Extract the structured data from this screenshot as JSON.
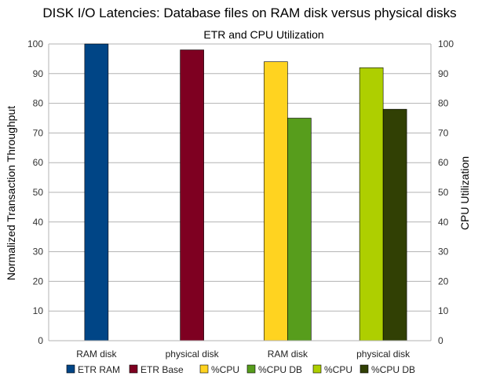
{
  "chart_data": {
    "type": "bar",
    "title": "DISK I/O Latencies: Database files on RAM disk versus physical disks",
    "subtitle": "ETR and CPU Utilization",
    "ylabel": "Normalized Transaction Throughput",
    "y2label": "CPU Utilization",
    "ylim": [
      0,
      100
    ],
    "y2lim": [
      0,
      100
    ],
    "yticks": [
      0,
      10,
      20,
      30,
      40,
      50,
      60,
      70,
      80,
      90,
      100
    ],
    "grid": true,
    "legend_position": "bottom",
    "categories": [
      "RAM disk",
      "physical disk",
      "RAM disk",
      "physical disk"
    ],
    "series": [
      {
        "name": "ETR RAM",
        "color": "#004586",
        "axis": "left",
        "values": [
          100,
          null,
          null,
          null
        ]
      },
      {
        "name": "ETR Base",
        "color": "#7e0021",
        "axis": "left",
        "values": [
          null,
          98,
          null,
          null
        ]
      },
      {
        "name": "%CPU",
        "color": "#ffd320",
        "axis": "right",
        "values": [
          null,
          null,
          94,
          null
        ]
      },
      {
        "name": "%CPU DB",
        "color": "#579d1c",
        "axis": "right",
        "values": [
          null,
          null,
          75,
          null
        ]
      },
      {
        "name": "%CPU",
        "color": "#aecf00",
        "axis": "right",
        "values": [
          null,
          null,
          null,
          92
        ]
      },
      {
        "name": "%CPU DB",
        "color": "#314004",
        "axis": "right",
        "values": [
          null,
          null,
          null,
          78
        ]
      }
    ]
  }
}
